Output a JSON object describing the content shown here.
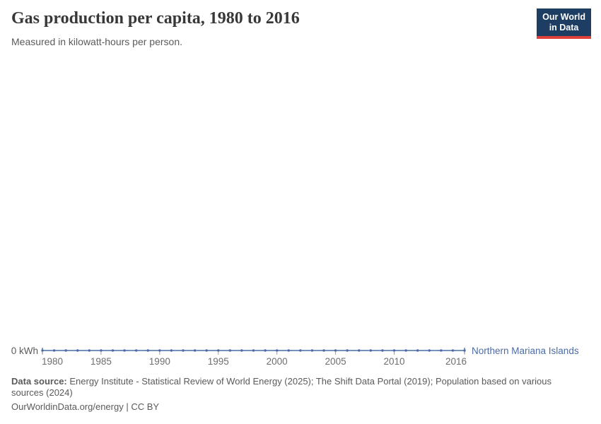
{
  "header": {
    "title": "Gas production per capita, 1980 to 2016",
    "subtitle": "Measured in kilowatt-hours per person."
  },
  "logo": {
    "line1": "Our World",
    "line2": "in Data",
    "bg_color": "#1d3d63",
    "bar_color": "#e0403a"
  },
  "chart_data": {
    "type": "line",
    "title": "Gas production per capita, 1980 to 2016",
    "unit": "kWh",
    "x": [
      1980,
      1981,
      1982,
      1983,
      1984,
      1985,
      1986,
      1987,
      1988,
      1989,
      1990,
      1991,
      1992,
      1993,
      1994,
      1995,
      1996,
      1997,
      1998,
      1999,
      2000,
      2001,
      2002,
      2003,
      2004,
      2005,
      2006,
      2007,
      2008,
      2009,
      2010,
      2011,
      2012,
      2013,
      2014,
      2015,
      2016
    ],
    "series": [
      {
        "name": "Northern Mariana Islands",
        "color": "#4c6ba6",
        "values": [
          0,
          0,
          0,
          0,
          0,
          0,
          0,
          0,
          0,
          0,
          0,
          0,
          0,
          0,
          0,
          0,
          0,
          0,
          0,
          0,
          0,
          0,
          0,
          0,
          0,
          0,
          0,
          0,
          0,
          0,
          0,
          0,
          0,
          0,
          0,
          0,
          0
        ]
      }
    ],
    "x_ticks": [
      1980,
      1985,
      1990,
      1995,
      2000,
      2005,
      2010,
      2016
    ],
    "y_zero_label": "0 kWh",
    "xlim": [
      1980,
      2016
    ],
    "ylim": [
      0,
      0
    ],
    "grid": false,
    "legend_position": "line-end-label",
    "tick_color": "#a1a1a1",
    "tick_label_color": "#6e6e6e",
    "axis_label_color": "#5b5b5b"
  },
  "footer": {
    "data_source_label": "Data source:",
    "data_source_text": " Energy Institute - Statistical Review of World Energy (2025); The Shift Data Portal (2019); Population based on various sources (2024)",
    "link_text": "OurWorldinData.org/energy | CC BY"
  }
}
